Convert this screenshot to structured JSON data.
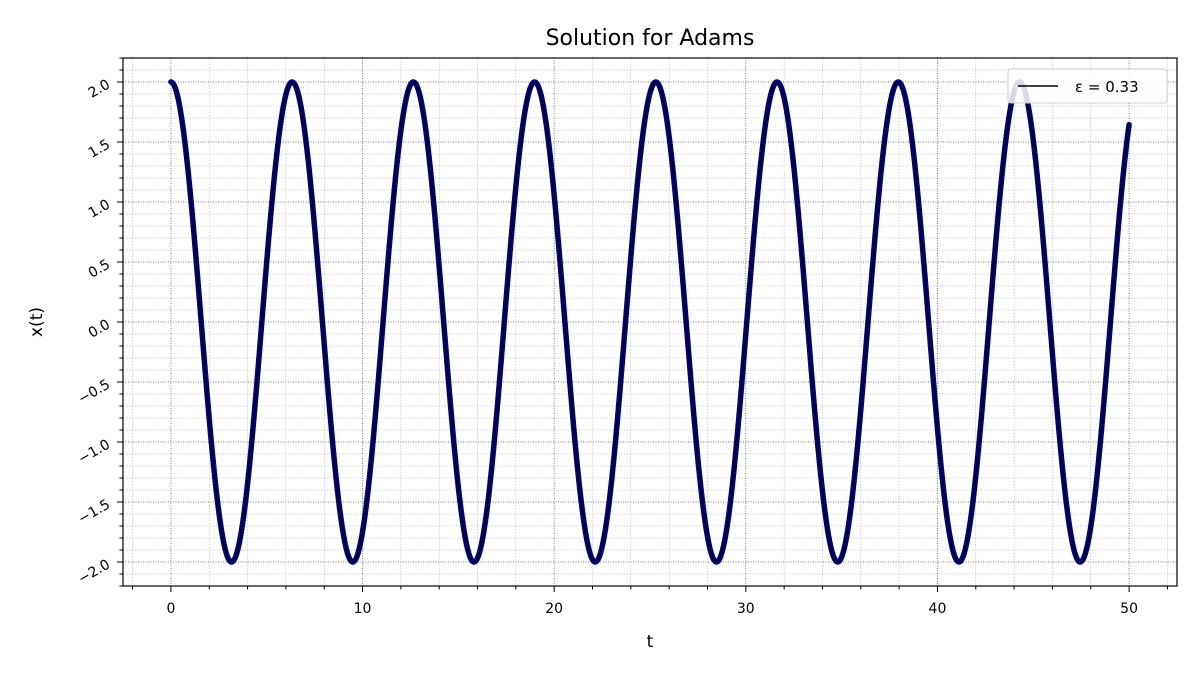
{
  "chart_data": {
    "type": "line",
    "title": "Solution for Adams",
    "xlabel": "t",
    "ylabel": "x(t)",
    "xlim": [
      -2.5,
      52.5
    ],
    "ylim": [
      -2.2,
      2.2
    ],
    "xticks": [
      0,
      10,
      20,
      30,
      40,
      50
    ],
    "yticks": [
      -2.0,
      -1.5,
      -1.0,
      -0.5,
      0.0,
      0.5,
      1.0,
      1.5,
      2.0
    ],
    "xtick_labels": [
      "0",
      "10",
      "20",
      "30",
      "40",
      "50"
    ],
    "ytick_labels": [
      "−2.0",
      "−1.5",
      "−1.0",
      "−0.5",
      "0.0",
      "0.5",
      "1.0",
      "1.5",
      "2.0"
    ],
    "grid": true,
    "legend_position": "top-right",
    "series": [
      {
        "name": "ε = 0.33",
        "color": "#000080",
        "x_start": 0,
        "x_end": 50,
        "function": "2*cos(t*(1 - eps^2/16))",
        "eps": 0.33,
        "amplitude": 2.0,
        "period": 6.326
      }
    ]
  }
}
